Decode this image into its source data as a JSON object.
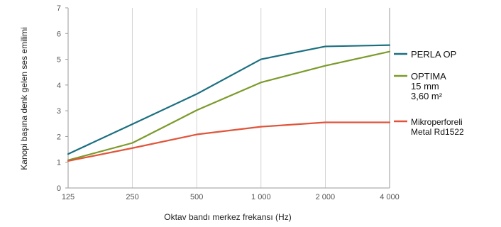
{
  "chart_data": {
    "type": "line",
    "title": "",
    "xlabel": "Oktav bandı merkez frekansı (Hz)",
    "ylabel": "Kanopi başına denk gelen ses emilimi",
    "categories": [
      "125",
      "250",
      "500",
      "1 000",
      "2 000",
      "4 000"
    ],
    "ylim": [
      0,
      7
    ],
    "yticks": [
      "0",
      "1",
      "2",
      "3",
      "4",
      "5",
      "6",
      "7"
    ],
    "grid": "vertical",
    "legend_position": "right",
    "series": [
      {
        "name": "PERLA OP",
        "legend_lines": [
          "PERLA OP"
        ],
        "color": "#1b6f80",
        "values": [
          1.32,
          2.48,
          3.65,
          5.0,
          5.5,
          5.55
        ]
      },
      {
        "name": "OPTIMA 15 mm 3,60 m²",
        "legend_lines": [
          "OPTIMA",
          "15 mm",
          "3,60 m²"
        ],
        "color": "#7b9b2b",
        "values": [
          1.08,
          1.75,
          3.02,
          4.1,
          4.75,
          5.3
        ]
      },
      {
        "name": "Mikroperforeli Metal Rd1522",
        "legend_lines": [
          "Mikroperforeli",
          "Metal Rd1522"
        ],
        "color": "#e0553a",
        "values": [
          1.05,
          1.55,
          2.08,
          2.38,
          2.55,
          2.55
        ]
      }
    ]
  }
}
